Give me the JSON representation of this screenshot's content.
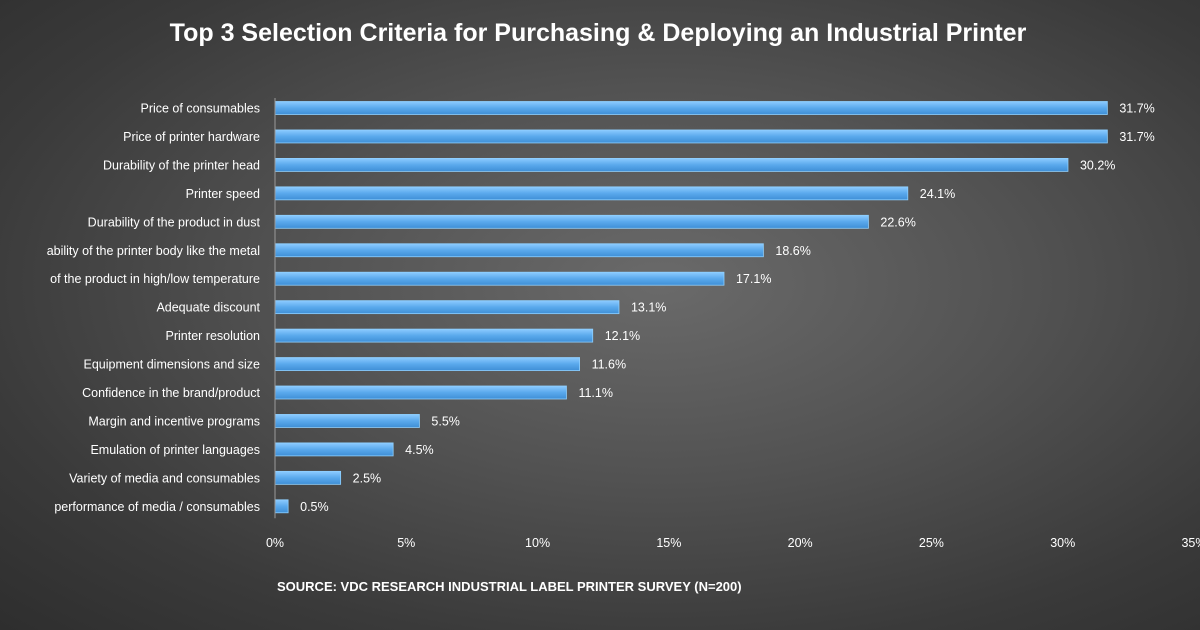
{
  "chart_data": {
    "type": "bar",
    "orientation": "horizontal",
    "title": "Top 3 Selection Criteria for Purchasing & Deploying an Industrial Printer",
    "source": "SOURCE: VDC RESEARCH INDUSTRIAL LABEL PRINTER SURVEY (N=200)",
    "categories": [
      "Price of consumables",
      "Price of printer hardware",
      "Durability of the printer head",
      "Printer speed",
      "Durability of the product in dust",
      "ability of the printer body like the metal",
      "of the product in high/low temperature",
      "Adequate discount",
      "Printer resolution",
      "Equipment dimensions and size",
      "Confidence in the brand/product",
      "Margin and incentive programs",
      "Emulation of  printer languages",
      "Variety of media and consumables",
      "performance of  media / consumables"
    ],
    "values": [
      31.7,
      31.7,
      30.2,
      24.1,
      22.6,
      18.6,
      17.1,
      13.1,
      12.1,
      11.6,
      11.1,
      5.5,
      4.5,
      2.5,
      0.5
    ],
    "value_labels": [
      "31.7%",
      "31.7%",
      "30.2%",
      "24.1%",
      "22.6%",
      "18.6%",
      "17.1%",
      "13.1%",
      "12.1%",
      "11.6%",
      "11.1%",
      "5.5%",
      "4.5%",
      "2.5%",
      "0.5%"
    ],
    "xlim": [
      0,
      35
    ],
    "xticks": [
      0,
      5,
      10,
      15,
      20,
      25,
      30,
      35
    ],
    "xtick_labels": [
      "0%",
      "5%",
      "10%",
      "15%",
      "20%",
      "25%",
      "30%",
      "35%"
    ],
    "grid": false,
    "colors": {
      "bar_fill": "#5aa9ec",
      "bar_edge": "#8fd0ff",
      "text": "#ffffff",
      "axis": "#9a9a9a"
    }
  }
}
